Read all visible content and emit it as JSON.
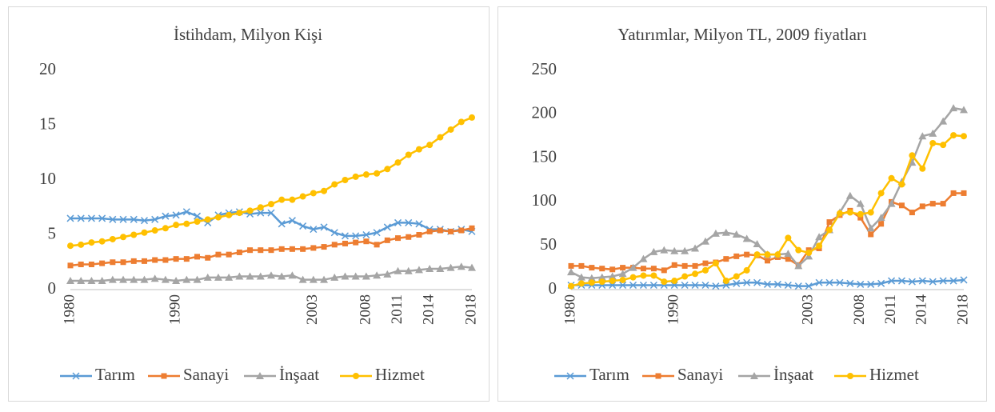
{
  "chart_data": [
    {
      "type": "line",
      "title": "İstihdam, Milyon Kişi",
      "x": [
        1980,
        1981,
        1982,
        1983,
        1984,
        1985,
        1986,
        1987,
        1988,
        1989,
        1990,
        1991,
        1992,
        1993,
        1994,
        1995,
        1996,
        1997,
        1998,
        1999,
        2000,
        2001,
        2002,
        2003,
        2004,
        2005,
        2006,
        2007,
        2008,
        2009,
        2010,
        2011,
        2012,
        2013,
        2014,
        2015,
        2016,
        2017,
        2018
      ],
      "xlim": [
        1980,
        2018
      ],
      "xticks": [
        1980,
        1990,
        2003,
        2008,
        2011,
        2014,
        2018
      ],
      "ylim": [
        0,
        20
      ],
      "yticks": [
        0,
        5,
        10,
        15,
        20
      ],
      "grid": false,
      "legend": "bottom",
      "series": [
        {
          "name": "Tarım",
          "color": "#5b9bd5",
          "marker": "x",
          "values": [
            6.5,
            6.5,
            6.5,
            6.5,
            6.4,
            6.4,
            6.4,
            6.3,
            6.4,
            6.7,
            6.8,
            7.1,
            6.7,
            6.1,
            6.8,
            7.0,
            7.1,
            6.9,
            7.0,
            7.0,
            6.0,
            6.3,
            5.8,
            5.5,
            5.7,
            5.2,
            4.9,
            4.9,
            5.0,
            5.2,
            5.7,
            6.1,
            6.1,
            6.0,
            5.5,
            5.5,
            5.3,
            5.5,
            5.3
          ]
        },
        {
          "name": "Sanayi",
          "color": "#ed7d31",
          "marker": "square",
          "values": [
            2.2,
            2.3,
            2.3,
            2.4,
            2.5,
            2.5,
            2.6,
            2.6,
            2.7,
            2.7,
            2.8,
            2.8,
            3.0,
            2.9,
            3.2,
            3.2,
            3.4,
            3.6,
            3.6,
            3.6,
            3.7,
            3.7,
            3.7,
            3.8,
            3.9,
            4.1,
            4.2,
            4.3,
            4.4,
            4.1,
            4.5,
            4.7,
            4.8,
            5.0,
            5.3,
            5.4,
            5.3,
            5.4,
            5.6
          ]
        },
        {
          "name": "İnşaat",
          "color": "#a5a5a5",
          "marker": "triangle",
          "values": [
            0.8,
            0.8,
            0.8,
            0.8,
            0.9,
            0.9,
            0.9,
            0.9,
            1.0,
            0.9,
            0.8,
            0.9,
            0.9,
            1.1,
            1.1,
            1.1,
            1.2,
            1.2,
            1.2,
            1.3,
            1.2,
            1.3,
            0.9,
            0.9,
            0.9,
            1.1,
            1.2,
            1.2,
            1.2,
            1.3,
            1.4,
            1.7,
            1.7,
            1.8,
            1.9,
            1.9,
            2.0,
            2.1,
            2.0
          ]
        },
        {
          "name": "Hizmet",
          "color": "#ffc000",
          "marker": "circle",
          "values": [
            4.0,
            4.1,
            4.3,
            4.4,
            4.6,
            4.8,
            5.0,
            5.2,
            5.4,
            5.6,
            5.9,
            6.0,
            6.2,
            6.4,
            6.6,
            6.8,
            7.0,
            7.2,
            7.5,
            7.8,
            8.2,
            8.2,
            8.5,
            8.8,
            9.0,
            9.6,
            10.0,
            10.3,
            10.5,
            10.6,
            11.0,
            11.6,
            12.3,
            12.8,
            13.2,
            13.9,
            14.6,
            15.3,
            15.7
          ]
        }
      ]
    },
    {
      "type": "line",
      "title": "Yatırımlar, Milyon TL, 2009 fiyatları",
      "x": [
        1980,
        1981,
        1982,
        1983,
        1984,
        1985,
        1986,
        1987,
        1988,
        1989,
        1990,
        1991,
        1992,
        1993,
        1994,
        1995,
        1996,
        1997,
        1998,
        1999,
        2000,
        2001,
        2002,
        2003,
        2004,
        2005,
        2006,
        2007,
        2008,
        2009,
        2010,
        2011,
        2012,
        2013,
        2014,
        2015,
        2016,
        2017,
        2018
      ],
      "xlim": [
        1980,
        2018
      ],
      "xticks": [
        1980,
        1990,
        2003,
        2008,
        2011,
        2014,
        2018
      ],
      "ylim": [
        0,
        250
      ],
      "yticks": [
        0,
        50,
        100,
        150,
        200,
        250
      ],
      "grid": false,
      "legend": "bottom",
      "series": [
        {
          "name": "Tarım",
          "color": "#5b9bd5",
          "marker": "x",
          "values": [
            5,
            5,
            5,
            5,
            5,
            5,
            5,
            5,
            5,
            5,
            5,
            5,
            5,
            5,
            4,
            5,
            7,
            8,
            8,
            6,
            6,
            5,
            4,
            4,
            8,
            8,
            8,
            7,
            6,
            6,
            7,
            10,
            10,
            9,
            10,
            9,
            10,
            10,
            11
          ]
        },
        {
          "name": "Sanayi",
          "color": "#ed7d31",
          "marker": "square",
          "values": [
            27,
            27,
            25,
            24,
            23,
            25,
            25,
            24,
            24,
            22,
            28,
            27,
            27,
            30,
            31,
            35,
            38,
            40,
            39,
            33,
            37,
            35,
            28,
            45,
            47,
            77,
            85,
            90,
            82,
            63,
            75,
            100,
            96,
            88,
            95,
            98,
            98,
            110,
            110
          ]
        },
        {
          "name": "İnşaat",
          "color": "#a5a5a5",
          "marker": "triangle",
          "values": [
            20,
            14,
            13,
            14,
            15,
            18,
            25,
            35,
            43,
            45,
            44,
            44,
            47,
            55,
            64,
            65,
            63,
            58,
            52,
            40,
            40,
            41,
            27,
            38,
            60,
            68,
            88,
            107,
            98,
            70,
            82,
            98,
            123,
            145,
            175,
            178,
            192,
            207,
            205
          ]
        },
        {
          "name": "Hizmet",
          "color": "#ffc000",
          "marker": "circle",
          "values": [
            4,
            7,
            8,
            9,
            10,
            11,
            14,
            16,
            16,
            9,
            10,
            15,
            18,
            22,
            30,
            10,
            15,
            22,
            40,
            40,
            40,
            59,
            45,
            42,
            50,
            68,
            87,
            88,
            86,
            88,
            110,
            127,
            120,
            153,
            138,
            167,
            165,
            176,
            175
          ]
        }
      ]
    }
  ]
}
